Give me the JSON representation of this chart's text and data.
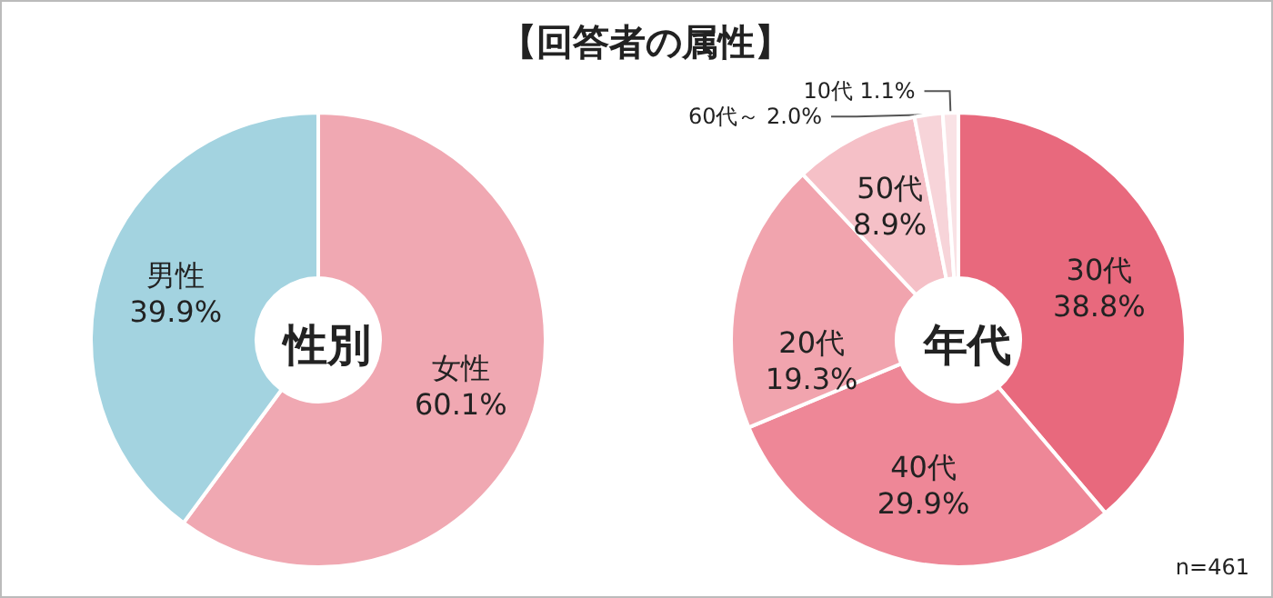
{
  "chart_data": [
    {
      "type": "donut",
      "title": "【回答者の属性】",
      "subtitle": "性別",
      "categories": [
        "女性",
        "男性"
      ],
      "values": [
        60.1,
        39.9
      ],
      "value_labels": [
        "60.1%",
        "39.9%"
      ],
      "colors": [
        "#f0a8b2",
        "#a3d3e0"
      ]
    },
    {
      "type": "donut",
      "title": "年代",
      "categories": [
        "30代",
        "40代",
        "20代",
        "50代",
        "60代～",
        "10代"
      ],
      "values": [
        38.8,
        29.9,
        19.3,
        8.9,
        2.0,
        1.1
      ],
      "value_labels": [
        "38.8%",
        "29.9%",
        "19.3%",
        "8.9%",
        "2.0%",
        "1.1%"
      ],
      "colors": [
        "#e8697d",
        "#ee8797",
        "#f1a4ae",
        "#f5c0c7",
        "#f7d4d9",
        "#f9e2e5"
      ],
      "annotations": [
        "n=461"
      ]
    }
  ]
}
